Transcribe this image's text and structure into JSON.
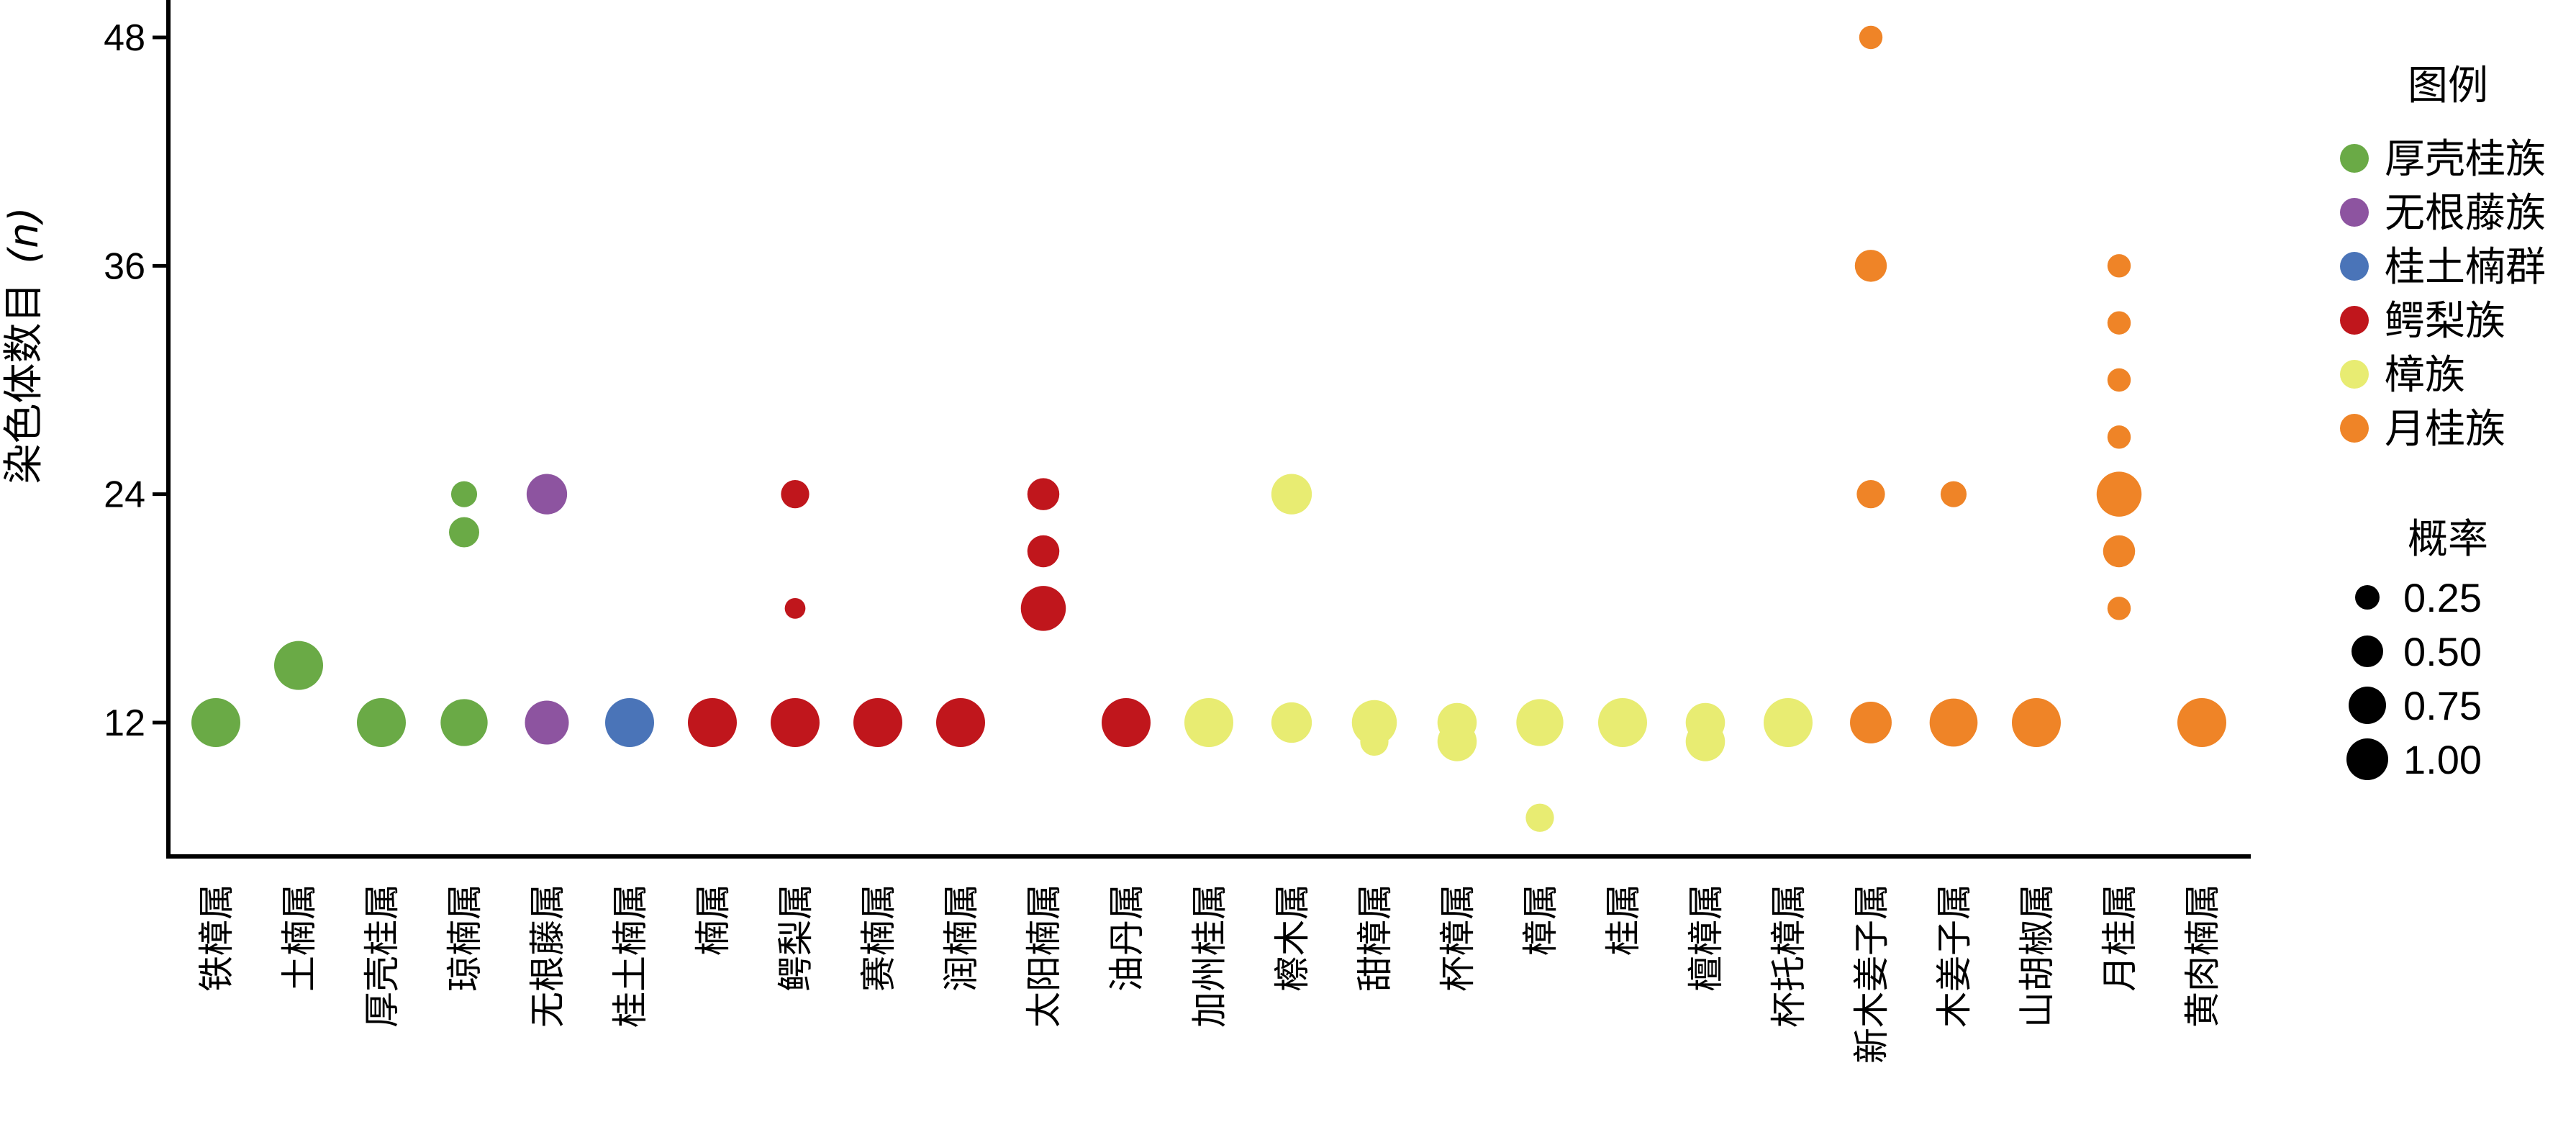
{
  "chart_data": {
    "type": "scatter",
    "ylabel": "染色体数目",
    "ylabel_italic": "(n)",
    "yticks": [
      12,
      24,
      36,
      48
    ],
    "ylim": [
      5,
      49
    ],
    "categories": [
      "铁樟属",
      "土楠属",
      "厚壳桂属",
      "琼楠属",
      "无根藤属",
      "桂土楠属",
      "楠属",
      "鳄梨属",
      "赛楠属",
      "润楠属",
      "太阳楠属",
      "油丹属",
      "加州桂属",
      "檫木属",
      "甜樟属",
      "杯樟属",
      "樟属",
      "桂属",
      "檀樟属",
      "杯托樟属",
      "新木姜子属",
      "木姜子属",
      "山胡椒属",
      "月桂属",
      "黄肉楠属"
    ],
    "legend": {
      "title": "图例",
      "position": "right",
      "items": [
        {
          "name": "厚壳桂族",
          "color": "#6aaa46"
        },
        {
          "name": "无根藤族",
          "color": "#8d54a0"
        },
        {
          "name": "桂土楠群",
          "color": "#4a74b8"
        },
        {
          "name": "鳄梨族",
          "color": "#c0161c"
        },
        {
          "name": "樟族",
          "color": "#e8ec72"
        },
        {
          "name": "月桂族",
          "color": "#ef8427"
        }
      ]
    },
    "size_legend": {
      "title": "概率",
      "values": [
        0.25,
        0.5,
        0.75,
        1.0
      ],
      "labels": [
        "0.25",
        "0.50",
        "0.75",
        "1.00"
      ]
    },
    "points": [
      {
        "category": "铁樟属",
        "y": 12,
        "p": 1.0,
        "group": 0
      },
      {
        "category": "土楠属",
        "y": 15,
        "p": 1.0,
        "group": 0
      },
      {
        "category": "厚壳桂属",
        "y": 12,
        "p": 1.0,
        "group": 0
      },
      {
        "category": "琼楠属",
        "y": 12,
        "p": 0.9,
        "group": 0
      },
      {
        "category": "琼楠属",
        "y": 22,
        "p": 0.25,
        "group": 0
      },
      {
        "category": "琼楠属",
        "y": 24,
        "p": 0.15,
        "group": 0
      },
      {
        "category": "无根藤属",
        "y": 12,
        "p": 0.75,
        "group": 1
      },
      {
        "category": "无根藤属",
        "y": 24,
        "p": 0.6,
        "group": 1
      },
      {
        "category": "桂土楠属",
        "y": 12,
        "p": 1.0,
        "group": 2
      },
      {
        "category": "楠属",
        "y": 12,
        "p": 1.0,
        "group": 3
      },
      {
        "category": "鳄梨属",
        "y": 12,
        "p": 1.0,
        "group": 3
      },
      {
        "category": "鳄梨属",
        "y": 18,
        "p": 0.06,
        "group": 3
      },
      {
        "category": "鳄梨属",
        "y": 24,
        "p": 0.2,
        "group": 3
      },
      {
        "category": "赛楠属",
        "y": 12,
        "p": 1.0,
        "group": 3
      },
      {
        "category": "润楠属",
        "y": 12,
        "p": 1.0,
        "group": 3
      },
      {
        "category": "太阳楠属",
        "y": 18,
        "p": 0.8,
        "group": 3
      },
      {
        "category": "太阳楠属",
        "y": 21,
        "p": 0.3,
        "group": 3
      },
      {
        "category": "太阳楠属",
        "y": 24,
        "p": 0.3,
        "group": 3
      },
      {
        "category": "油丹属",
        "y": 12,
        "p": 1.0,
        "group": 3
      },
      {
        "category": "加州桂属",
        "y": 12,
        "p": 1.0,
        "group": 4
      },
      {
        "category": "檫木属",
        "y": 12,
        "p": 0.6,
        "group": 4
      },
      {
        "category": "檫木属",
        "y": 24,
        "p": 0.6,
        "group": 4
      },
      {
        "category": "甜樟属",
        "y": 11,
        "p": 0.2,
        "group": 4
      },
      {
        "category": "甜樟属",
        "y": 12,
        "p": 0.8,
        "group": 4
      },
      {
        "category": "杯樟属",
        "y": 11,
        "p": 0.55,
        "group": 4
      },
      {
        "category": "杯樟属",
        "y": 12,
        "p": 0.55,
        "group": 4
      },
      {
        "category": "樟属",
        "y": 7,
        "p": 0.2,
        "group": 4
      },
      {
        "category": "樟属",
        "y": 12,
        "p": 0.9,
        "group": 4
      },
      {
        "category": "桂属",
        "y": 12,
        "p": 1.0,
        "group": 4
      },
      {
        "category": "檀樟属",
        "y": 11,
        "p": 0.55,
        "group": 4
      },
      {
        "category": "檀樟属",
        "y": 12,
        "p": 0.55,
        "group": 4
      },
      {
        "category": "杯托樟属",
        "y": 12,
        "p": 1.0,
        "group": 4
      },
      {
        "category": "新木姜子属",
        "y": 12,
        "p": 0.65,
        "group": 5
      },
      {
        "category": "新木姜子属",
        "y": 24,
        "p": 0.2,
        "group": 5
      },
      {
        "category": "新木姜子属",
        "y": 36,
        "p": 0.3,
        "group": 5
      },
      {
        "category": "新木姜子属",
        "y": 48,
        "p": 0.1,
        "group": 5
      },
      {
        "category": "木姜子属",
        "y": 12,
        "p": 0.95,
        "group": 5
      },
      {
        "category": "木姜子属",
        "y": 24,
        "p": 0.15,
        "group": 5
      },
      {
        "category": "山胡椒属",
        "y": 12,
        "p": 1.0,
        "group": 5
      },
      {
        "category": "月桂属",
        "y": 18,
        "p": 0.1,
        "group": 5
      },
      {
        "category": "月桂属",
        "y": 21,
        "p": 0.3,
        "group": 5
      },
      {
        "category": "月桂属",
        "y": 24,
        "p": 0.8,
        "group": 5
      },
      {
        "category": "月桂属",
        "y": 27,
        "p": 0.1,
        "group": 5
      },
      {
        "category": "月桂属",
        "y": 30,
        "p": 0.1,
        "group": 5
      },
      {
        "category": "月桂属",
        "y": 33,
        "p": 0.1,
        "group": 5
      },
      {
        "category": "月桂属",
        "y": 36,
        "p": 0.1,
        "group": 5
      },
      {
        "category": "黄肉楠属",
        "y": 12,
        "p": 1.0,
        "group": 5
      }
    ]
  }
}
